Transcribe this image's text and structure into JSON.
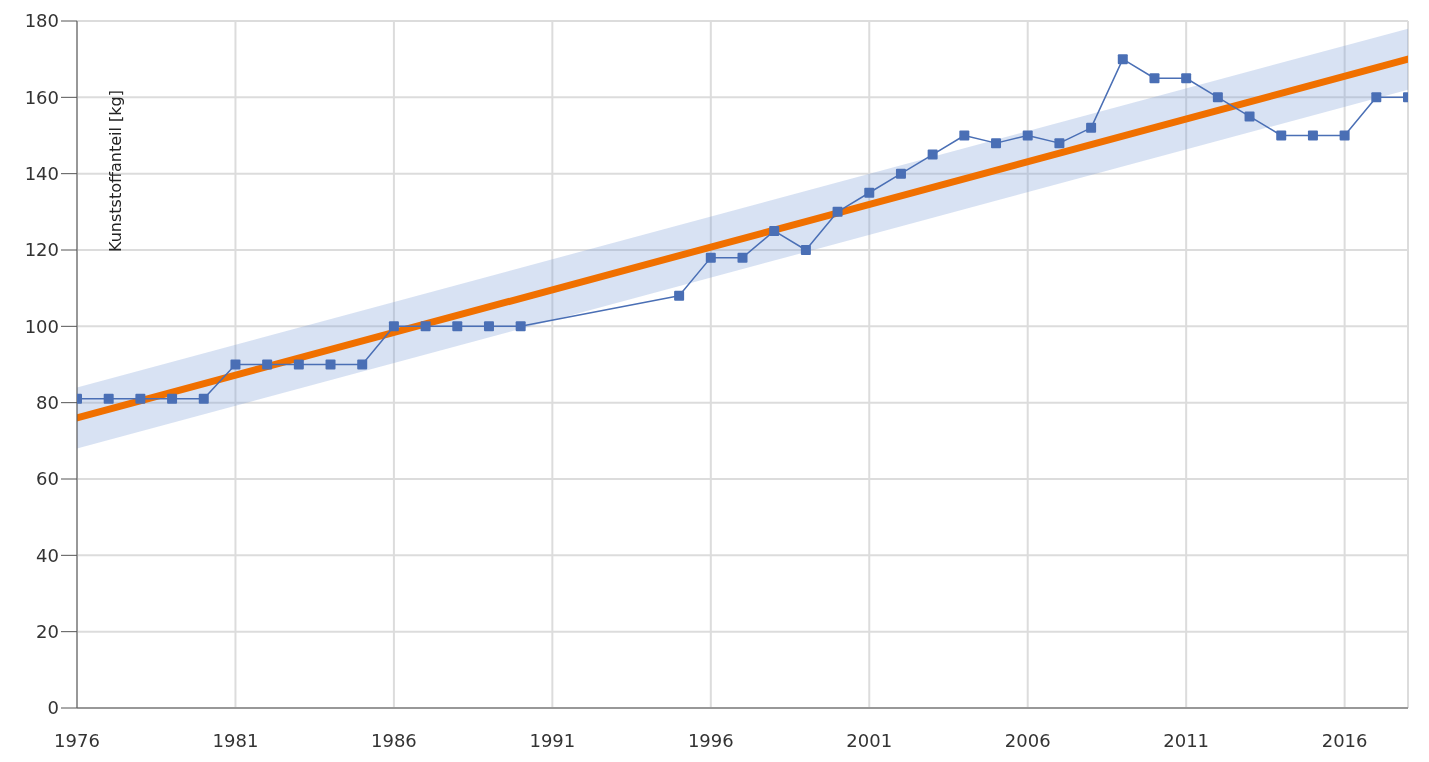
{
  "chart_data": {
    "type": "line",
    "ylabel": "Kunststoffanteil [kg]",
    "xlim": [
      1976,
      2018
    ],
    "xticks": [
      1976,
      1981,
      1986,
      1991,
      1996,
      2001,
      2006,
      2011,
      2016
    ],
    "ylim": [
      0,
      180
    ],
    "yticks": [
      0,
      20,
      40,
      60,
      80,
      100,
      120,
      140,
      160,
      180
    ],
    "grid": true,
    "marker": "square",
    "series": [
      {
        "color": "#4a6fb5",
        "x": [
          1976,
          1977,
          1978,
          1979,
          1980,
          1981,
          1982,
          1983,
          1984,
          1985,
          1986,
          1987,
          1988,
          1989,
          1990,
          1995,
          1996,
          1997,
          1998,
          1999,
          2000,
          2001,
          2002,
          2003,
          2004,
          2005,
          2006,
          2007,
          2008,
          2009,
          2010,
          2011,
          2012,
          2013,
          2014,
          2015,
          2016,
          2017,
          2018
        ],
        "values": [
          81,
          81,
          81,
          81,
          81,
          90,
          90,
          90,
          90,
          90,
          100,
          100,
          100,
          100,
          100,
          108,
          118,
          118,
          125,
          120,
          130,
          135,
          140,
          145,
          150,
          148,
          150,
          148,
          152,
          170,
          165,
          165,
          160,
          155,
          150,
          150,
          150,
          160,
          160
        ]
      },
      {
        "color": "#f07000",
        "marker": "none",
        "x": [
          1976,
          2018
        ],
        "values": [
          76,
          170
        ],
        "lower": [
          68,
          162
        ],
        "upper": [
          84,
          178
        ]
      }
    ]
  }
}
